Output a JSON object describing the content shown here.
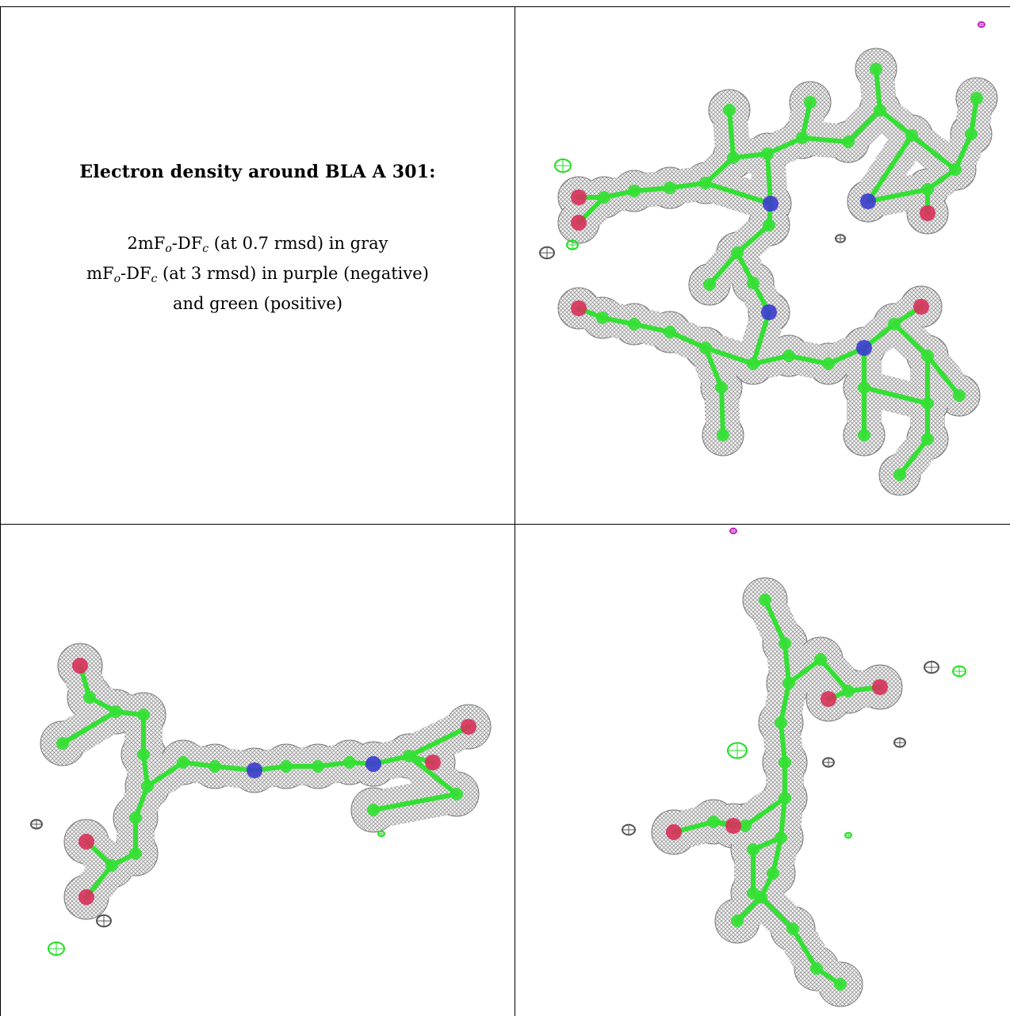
{
  "caption": {
    "title": "Electron density around BLA A 301:",
    "line1": {
      "pre": "2mF",
      "sub1": "o",
      "mid": "-DF",
      "sub2": "c",
      "post": " (at 0.7 rmsd) in gray"
    },
    "line2": {
      "pre": "mF",
      "sub1": "o",
      "mid": "-DF",
      "sub2": "c",
      "post": " (at 3 rmsd) in purple (negative)"
    },
    "line3": "and green (positive)"
  },
  "colors": {
    "mesh_gray": "#8a8a8a",
    "carbon_green": "#33e033",
    "oxygen_red": "#d8305a",
    "nitrogen_blue": "#3b3bd0",
    "positive_green": "#22dd22",
    "negative_purple": "#c020c0"
  },
  "panels": [
    {
      "view": "top-right"
    },
    {
      "view": "bottom-left"
    },
    {
      "view": "bottom-right"
    }
  ]
}
